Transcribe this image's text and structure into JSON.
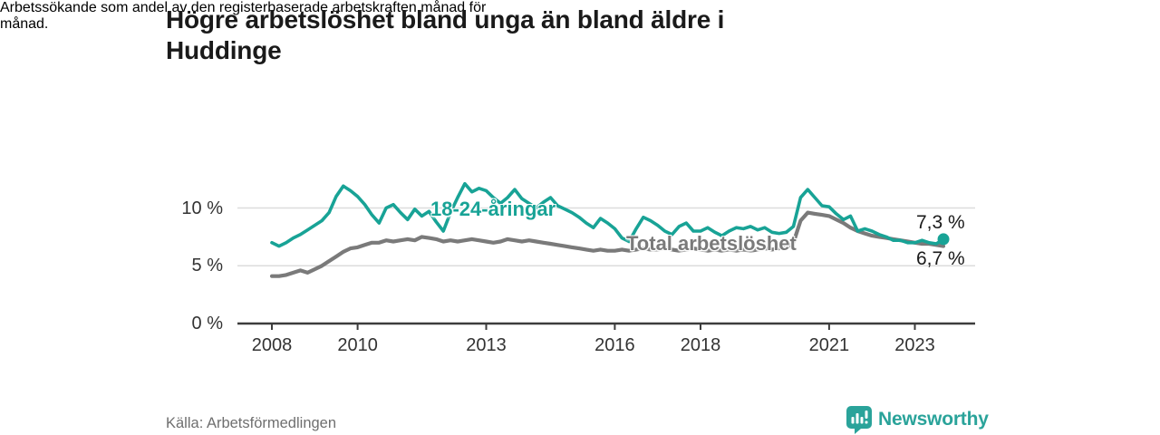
{
  "header": {
    "title_lines": [
      "Högre arbetslöshet bland unga än bland äldre i",
      "Huddinge"
    ],
    "subtitle_lines": [
      "Arbetssökande som andel av den registerbaserade arbetskraften månad för",
      "månad."
    ]
  },
  "footer": {
    "source": "Källa: Arbetsförmedlingen",
    "brand_name": "Newsworthy"
  },
  "colors": {
    "accent_teal": "#18a396",
    "line_gray": "#7a7a7a",
    "grid": "#dcdcdc",
    "axis": "#3c3c3c",
    "text_dark": "#1a1a1a",
    "tick_text": "#333333",
    "source_text": "#6f6f6f",
    "brand_teal": "#2aa39a"
  },
  "chart_data": {
    "type": "line",
    "title": "Högre arbetslöshet bland unga än bland äldre i Huddinge",
    "subtitle": "Arbetssökande som andel av den registerbaserade arbetskraften månad för månad.",
    "xlabel": "",
    "ylabel": "",
    "x_start": 2008.0,
    "points_per_year": 6,
    "x_range": [
      2008,
      2023.67
    ],
    "ylim": [
      0,
      13
    ],
    "grid": "horizontal",
    "legend_position": "inline-labels",
    "y_ticks": [
      {
        "value": 0,
        "label": "0 %"
      },
      {
        "value": 5,
        "label": "5 %"
      },
      {
        "value": 10,
        "label": "10 %"
      }
    ],
    "x_ticks": [
      {
        "year": 2008,
        "label": "2008"
      },
      {
        "year": 2010,
        "label": "2010"
      },
      {
        "year": 2013,
        "label": "2013"
      },
      {
        "year": 2016,
        "label": "2016"
      },
      {
        "year": 2018,
        "label": "2018"
      },
      {
        "year": 2021,
        "label": "2021"
      },
      {
        "year": 2023,
        "label": "2023"
      }
    ],
    "series": [
      {
        "name": "18-24-åringar",
        "color": "#18a396",
        "end_label": "7,3 %",
        "end_value": 7.3,
        "end_dot": true,
        "values": [
          7.0,
          6.7,
          7.0,
          7.4,
          7.7,
          8.1,
          8.5,
          8.9,
          9.6,
          11.0,
          11.9,
          11.5,
          11.0,
          10.3,
          9.4,
          8.7,
          10.0,
          10.3,
          9.6,
          9.0,
          9.9,
          9.3,
          9.7,
          8.8,
          8.0,
          9.6,
          10.9,
          12.1,
          11.4,
          11.7,
          11.5,
          10.9,
          10.4,
          10.9,
          11.6,
          10.8,
          10.4,
          10.0,
          10.5,
          10.9,
          10.2,
          9.9,
          9.6,
          9.2,
          8.7,
          8.3,
          9.1,
          8.7,
          8.2,
          7.4,
          7.1,
          8.2,
          9.2,
          8.9,
          8.5,
          8.0,
          7.7,
          8.4,
          8.7,
          8.0,
          8.0,
          8.3,
          7.9,
          7.6,
          8.0,
          8.3,
          8.2,
          8.4,
          8.1,
          8.3,
          7.9,
          7.8,
          7.9,
          8.4,
          10.9,
          11.6,
          10.9,
          10.2,
          10.1,
          9.5,
          9.0,
          9.3,
          8.0,
          8.2,
          8.0,
          7.7,
          7.5,
          7.2,
          7.2,
          7.0,
          7.0,
          7.2,
          7.0,
          6.9,
          7.3
        ]
      },
      {
        "name": "Total arbetslöshet",
        "color": "#7a7a7a",
        "end_label": "6,7 %",
        "end_value": 6.7,
        "end_dot": false,
        "values": [
          4.1,
          4.1,
          4.2,
          4.4,
          4.6,
          4.4,
          4.7,
          5.0,
          5.4,
          5.8,
          6.2,
          6.5,
          6.6,
          6.8,
          7.0,
          7.0,
          7.2,
          7.1,
          7.2,
          7.3,
          7.2,
          7.5,
          7.4,
          7.3,
          7.1,
          7.2,
          7.1,
          7.2,
          7.3,
          7.2,
          7.1,
          7.0,
          7.1,
          7.3,
          7.2,
          7.1,
          7.2,
          7.1,
          7.0,
          6.9,
          6.8,
          6.7,
          6.6,
          6.5,
          6.4,
          6.3,
          6.4,
          6.3,
          6.3,
          6.4,
          6.3,
          6.4,
          6.5,
          6.4,
          6.4,
          6.5,
          6.4,
          6.3,
          6.4,
          6.5,
          6.4,
          6.3,
          6.4,
          6.3,
          6.4,
          6.3,
          6.4,
          6.3,
          6.4,
          6.5,
          6.4,
          6.5,
          6.6,
          7.0,
          8.9,
          9.6,
          9.5,
          9.4,
          9.3,
          9.0,
          8.7,
          8.3,
          8.0,
          7.8,
          7.6,
          7.5,
          7.4,
          7.3,
          7.2,
          7.1,
          7.0,
          6.9,
          6.9,
          6.8,
          6.7
        ]
      }
    ]
  }
}
